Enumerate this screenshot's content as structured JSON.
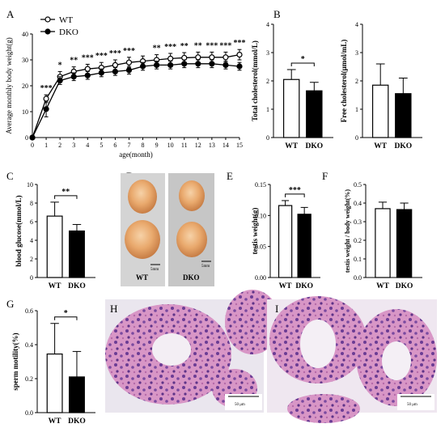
{
  "chart_data": [
    {
      "id": "A",
      "type": "line",
      "panel_label": "A",
      "xlabel": "age(month)",
      "ylabel": "Average monthly body weight(g)",
      "xlim": [
        0,
        15
      ],
      "ylim": [
        0,
        40
      ],
      "xticks": [
        "0",
        "1",
        "2",
        "3",
        "4",
        "5",
        "6",
        "7",
        "8",
        "9",
        "10",
        "11",
        "12",
        "13",
        "14",
        "15"
      ],
      "yticks": [
        "0",
        "10",
        "20",
        "30",
        "40"
      ],
      "legend_position": "top-left",
      "x": [
        0,
        1,
        2,
        3,
        4,
        5,
        6,
        7,
        8,
        9,
        10,
        11,
        12,
        13,
        14,
        15
      ],
      "series": [
        {
          "name": "WT",
          "marker": "open-circle",
          "values": [
            0,
            15,
            23.5,
            25.5,
            26.5,
            27,
            28,
            29,
            29.5,
            30,
            30.5,
            30.8,
            31,
            31,
            31,
            32
          ],
          "error": [
            0,
            1.5,
            2,
            1.8,
            1.8,
            2,
            2,
            2,
            2,
            2,
            2,
            2,
            2,
            2,
            2,
            2
          ]
        },
        {
          "name": "DKO",
          "marker": "filled-circle",
          "values": [
            0,
            11,
            22,
            23.5,
            24,
            25,
            25.5,
            26,
            27.5,
            28,
            28,
            28.5,
            28.5,
            28.5,
            28,
            27.5
          ],
          "error": [
            0,
            3,
            1.5,
            1.5,
            1.5,
            1.5,
            1.5,
            1.5,
            1.5,
            1.5,
            1.5,
            1.5,
            1.5,
            1.5,
            1.5,
            1.5
          ]
        }
      ],
      "significance": [
        "",
        "***",
        "*",
        "**",
        "***",
        "***",
        "***",
        "***",
        "",
        "**",
        "***",
        "**",
        "**",
        "***",
        "***",
        "***"
      ]
    },
    {
      "id": "B1",
      "type": "bar",
      "panel_label": "B",
      "categories": [
        "WT",
        "DKO"
      ],
      "values": [
        2.05,
        1.65
      ],
      "error": [
        0.35,
        0.3
      ],
      "ylabel": "Total cholesterol(mmol/L)",
      "ylim": [
        0,
        4
      ],
      "yticks": [
        "0",
        "1",
        "2",
        "3",
        "4"
      ],
      "significance": "*"
    },
    {
      "id": "B2",
      "type": "bar",
      "panel_label": "",
      "categories": [
        "WT",
        "DKO"
      ],
      "values": [
        1.85,
        1.55
      ],
      "error": [
        0.75,
        0.55
      ],
      "ylabel": "Free cholesterol(μmol/mL)",
      "ylim": [
        0,
        4
      ],
      "yticks": [
        "0",
        "1",
        "2",
        "3",
        "4"
      ],
      "significance": ""
    },
    {
      "id": "C",
      "type": "bar",
      "panel_label": "C",
      "categories": [
        "WT",
        "DKO"
      ],
      "values": [
        6.6,
        5.0
      ],
      "error": [
        1.5,
        0.7
      ],
      "ylabel": "blood glucose(mmol/L)",
      "ylim": [
        0,
        10
      ],
      "yticks": [
        "0",
        "2",
        "4",
        "6",
        "8",
        "10"
      ],
      "significance": "**"
    },
    {
      "id": "E",
      "type": "bar",
      "panel_label": "E",
      "categories": [
        "WT",
        "DKO"
      ],
      "values": [
        0.116,
        0.102
      ],
      "error": [
        0.008,
        0.011
      ],
      "ylabel": "testis weight(g)",
      "ylim": [
        0,
        0.15
      ],
      "yticks": [
        "0.00",
        "0.05",
        "0.10",
        "0.15"
      ],
      "significance": "***"
    },
    {
      "id": "F",
      "type": "bar",
      "panel_label": "F",
      "categories": [
        "WT",
        "DKO"
      ],
      "values": [
        0.37,
        0.365
      ],
      "error": [
        0.035,
        0.035
      ],
      "ylabel": "testis weight / body weight(%)",
      "ylim": [
        0,
        0.5
      ],
      "yticks": [
        "0.0",
        "0.1",
        "0.2",
        "0.3",
        "0.4",
        "0.5"
      ],
      "significance": ""
    },
    {
      "id": "G",
      "type": "bar",
      "panel_label": "G",
      "categories": [
        "WT",
        "DKO"
      ],
      "values": [
        0.345,
        0.21
      ],
      "error": [
        0.18,
        0.15
      ],
      "ylabel": "sperm motility(%)",
      "ylim": [
        0,
        0.6
      ],
      "yticks": [
        "0.0",
        "0.2",
        "0.4",
        "0.6"
      ],
      "significance": "*"
    }
  ],
  "images": {
    "D": {
      "panel_label": "D",
      "left_label": "WT",
      "right_label": "DKO",
      "scale_bar": "5mm"
    },
    "H": {
      "panel_label": "H",
      "scale_bar": "50 μm"
    },
    "I": {
      "panel_label": "I",
      "scale_bar": "50 μm"
    }
  },
  "colors": {
    "wt": "#ffffff",
    "dko": "#000000",
    "tissue_pink": "#d68fc0",
    "tissue_purple": "#6a3f92",
    "testis_peach": "#e9b27f"
  }
}
